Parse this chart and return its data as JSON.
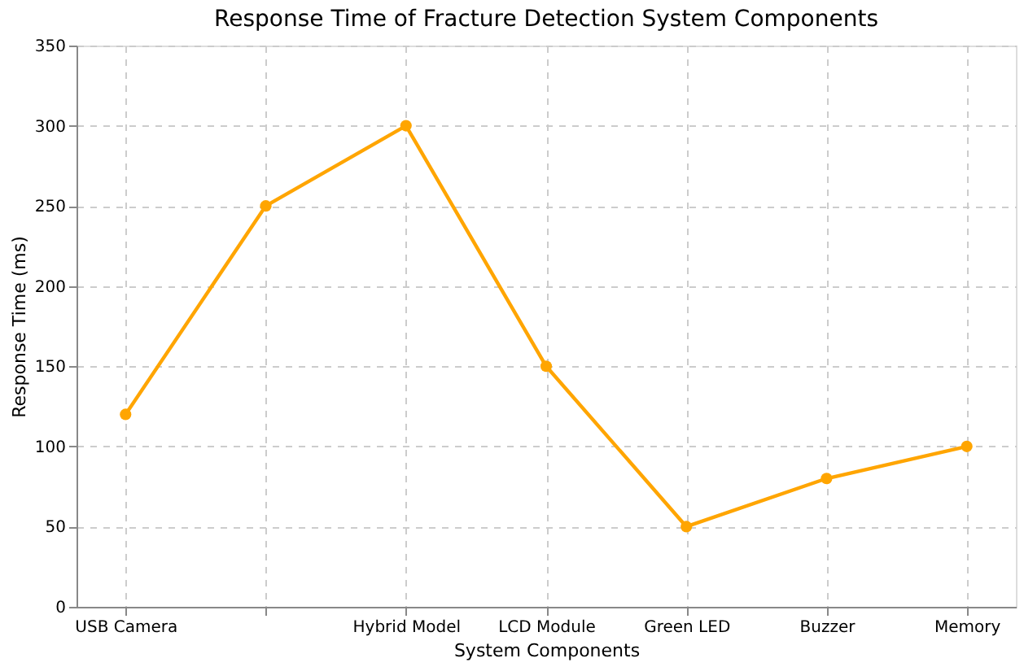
{
  "chart_data": {
    "type": "line",
    "title": "Response Time of Fracture Detection System Components",
    "xlabel": "System Components",
    "ylabel": "Response Time (ms)",
    "categories": [
      "USB Camera",
      null,
      "Hybrid Model",
      "LCD Module",
      "Green LED",
      "Buzzer",
      "Memory"
    ],
    "series": [
      {
        "color": "#ffa500",
        "values": [
          120,
          250,
          300,
          150,
          50,
          80,
          100
        ]
      }
    ],
    "ylim": [
      0,
      350
    ],
    "yticks": [
      0,
      50,
      100,
      150,
      200,
      250,
      300,
      350
    ],
    "grid": true,
    "marker": "circle",
    "line_style": "solid"
  }
}
